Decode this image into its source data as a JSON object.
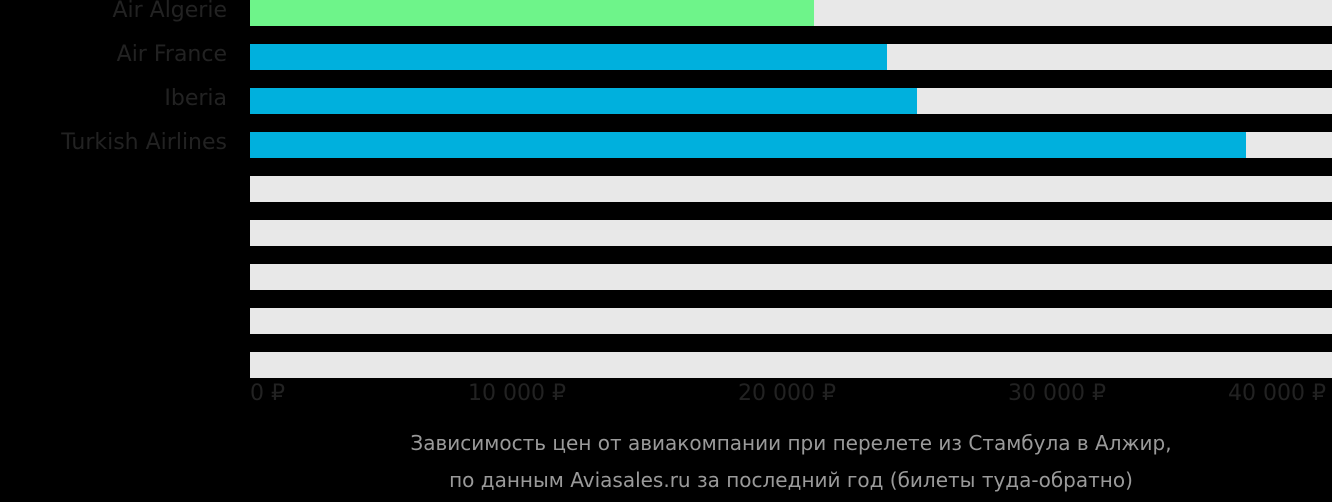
{
  "chart_data": {
    "type": "bar",
    "orientation": "horizontal",
    "categories": [
      "Air Algerie",
      "Air France",
      "Iberia",
      "Turkish Airlines",
      "",
      "",
      "",
      "",
      ""
    ],
    "values": [
      20900,
      23600,
      24700,
      36900,
      null,
      null,
      null,
      null,
      null
    ],
    "bar_colors": [
      "#6ef48a",
      "#00b0dd",
      "#00b0dd",
      "#00b0dd"
    ],
    "highlight_color": "#6ef48a",
    "default_color": "#00b0dd",
    "track_color": "#e8e8e8",
    "xlim": [
      0,
      40000
    ],
    "x_ticks": [
      0,
      10000,
      20000,
      30000,
      40000
    ],
    "x_tick_labels": [
      "0 ₽",
      "10 000 ₽",
      "20 000 ₽",
      "30 000 ₽",
      "40 000 ₽"
    ],
    "title": "Зависимость цен от авиакомпании при перелете из Стамбула в Алжир, по данным Aviasales.ru за последний год (билеты туда-обратно)",
    "xlabel": "",
    "ylabel": "",
    "grid": false,
    "legend": null
  },
  "rows": [
    {
      "label": "Air Algerie",
      "value": 20900,
      "color": "#6ef48a"
    },
    {
      "label": "Air France",
      "value": 23600,
      "color": "#00b0dd"
    },
    {
      "label": "Iberia",
      "value": 24700,
      "color": "#00b0dd"
    },
    {
      "label": "Turkish Airlines",
      "value": 36900,
      "color": "#00b0dd"
    },
    {
      "label": "",
      "value": null,
      "color": "#00b0dd"
    },
    {
      "label": "",
      "value": null,
      "color": "#00b0dd"
    },
    {
      "label": "",
      "value": null,
      "color": "#00b0dd"
    },
    {
      "label": "",
      "value": null,
      "color": "#00b0dd"
    },
    {
      "label": "",
      "value": null,
      "color": "#00b0dd"
    }
  ],
  "axis": {
    "ticks": [
      "0 ₽",
      "10 000 ₽",
      "20 000 ₽",
      "30 000 ₽",
      "40 000 ₽"
    ]
  },
  "caption": {
    "line1": "Зависимость цен от авиакомпании при перелете из Стамбула в Алжир,",
    "line2": "по данным Aviasales.ru за последний год (билеты туда-обратно)"
  }
}
